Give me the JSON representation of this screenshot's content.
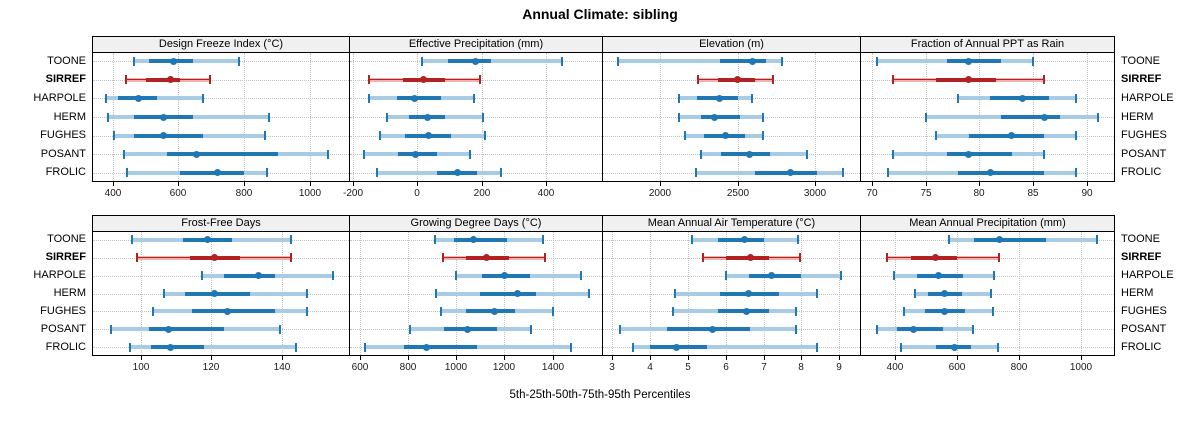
{
  "title": "Annual Climate: sibling",
  "caption": "5th-25th-50th-75th-95th Percentiles",
  "categories": [
    "TOONE",
    "SIRREF",
    "HARPOLE",
    "HERM",
    "FUGHES",
    "POSANT",
    "FROLIC"
  ],
  "highlight_category": "SIRREF",
  "colors": {
    "blue_dark": "#1f77b4",
    "blue_light": "#a8cce4",
    "red_dark": "#b22222",
    "red_light": "#f0b2ae",
    "strip_bg": "#f0f0f0",
    "grid": "#c3c3c3"
  },
  "chart_data": {
    "type": "dot-whisker-percentiles",
    "percentile_labels": [
      "5th",
      "25th",
      "50th",
      "75th",
      "95th"
    ],
    "panels": [
      {
        "title": "Design Freeze Index (°C)",
        "row": 1,
        "col": 0,
        "ticks": [
          400,
          600,
          800,
          1000
        ],
        "domain": [
          340,
          1120
        ],
        "series": [
          {
            "name": "TOONE",
            "values": [
              465,
              510,
              585,
              645,
              785
            ]
          },
          {
            "name": "SIRREF",
            "values": [
              440,
              500,
              575,
              605,
              695
            ]
          },
          {
            "name": "HARPOLE",
            "values": [
              380,
              415,
              480,
              535,
              675
            ]
          },
          {
            "name": "HERM",
            "values": [
              385,
              465,
              555,
              645,
              875
            ]
          },
          {
            "name": "FUGHES",
            "values": [
              405,
              465,
              555,
              675,
              865
            ]
          },
          {
            "name": "POSANT",
            "values": [
              435,
              565,
              655,
              905,
              1055
            ]
          },
          {
            "name": "FROLIC",
            "values": [
              445,
              605,
              720,
              800,
              870
            ]
          }
        ]
      },
      {
        "title": "Effective Precipitation (mm)",
        "row": 1,
        "col": 1,
        "ticks": [
          -200,
          0,
          200,
          400
        ],
        "domain": [
          -210,
          575
        ],
        "series": [
          {
            "name": "TOONE",
            "values": [
              15,
              95,
              180,
              230,
              450
            ]
          },
          {
            "name": "SIRREF",
            "values": [
              -150,
              -45,
              20,
              85,
              195
            ]
          },
          {
            "name": "HARPOLE",
            "values": [
              -150,
              -65,
              -10,
              75,
              175
            ]
          },
          {
            "name": "HERM",
            "values": [
              -95,
              -25,
              30,
              85,
              205
            ]
          },
          {
            "name": "FUGHES",
            "values": [
              -115,
              -40,
              35,
              105,
              210
            ]
          },
          {
            "name": "POSANT",
            "values": [
              -165,
              -60,
              -5,
              60,
              165
            ]
          },
          {
            "name": "FROLIC",
            "values": [
              -125,
              60,
              125,
              185,
              260
            ]
          }
        ]
      },
      {
        "title": "Elevation (m)",
        "row": 1,
        "col": 2,
        "ticks": [
          2000,
          2500,
          3000
        ],
        "domain": [
          1630,
          3290
        ],
        "series": [
          {
            "name": "TOONE",
            "values": [
              1730,
              2385,
              2595,
              2685,
              2785
            ]
          },
          {
            "name": "SIRREF",
            "values": [
              2245,
              2375,
              2500,
              2610,
              2730
            ]
          },
          {
            "name": "HARPOLE",
            "values": [
              2120,
              2235,
              2380,
              2505,
              2590
            ]
          },
          {
            "name": "HERM",
            "values": [
              2120,
              2260,
              2350,
              2515,
              2665
            ]
          },
          {
            "name": "FUGHES",
            "values": [
              2160,
              2280,
              2420,
              2545,
              2665
            ]
          },
          {
            "name": "POSANT",
            "values": [
              2260,
              2395,
              2575,
              2710,
              2945
            ]
          },
          {
            "name": "FROLIC",
            "values": [
              2230,
              2610,
              2840,
              3010,
              3180
            ]
          }
        ]
      },
      {
        "title": "Fraction of Annual PPT as Rain",
        "row": 1,
        "col": 3,
        "ticks": [
          70,
          75,
          80,
          85,
          90
        ],
        "domain": [
          69,
          92.5
        ],
        "series": [
          {
            "name": "TOONE",
            "values": [
              70.5,
              77,
              79,
              82,
              85
            ]
          },
          {
            "name": "SIRREF",
            "values": [
              72,
              76,
              79,
              81.5,
              86
            ]
          },
          {
            "name": "HARPOLE",
            "values": [
              78,
              81,
              84,
              86.5,
              89
            ]
          },
          {
            "name": "HERM",
            "values": [
              75,
              82,
              86,
              87.5,
              91
            ]
          },
          {
            "name": "FUGHES",
            "values": [
              76,
              79,
              83,
              86,
              89
            ]
          },
          {
            "name": "POSANT",
            "values": [
              72,
              77,
              79,
              83,
              86
            ]
          },
          {
            "name": "FROLIC",
            "values": [
              71.5,
              78,
              81,
              86,
              89
            ]
          }
        ]
      },
      {
        "title": "Frost-Free Days",
        "row": 2,
        "col": 0,
        "ticks": [
          100,
          120,
          140
        ],
        "domain": [
          86.5,
          159
        ],
        "series": [
          {
            "name": "TOONE",
            "values": [
              97.5,
              112,
              119,
              126,
              142.5
            ]
          },
          {
            "name": "SIRREF",
            "values": [
              99,
              114,
              121,
              128,
              142.5
            ]
          },
          {
            "name": "HARPOLE",
            "values": [
              117.5,
              123.5,
              133.5,
              138,
              154.5
            ]
          },
          {
            "name": "HERM",
            "values": [
              106.5,
              112.5,
              121,
              131,
              147
            ]
          },
          {
            "name": "FUGHES",
            "values": [
              103.5,
              114.5,
              124.5,
              138,
              147
            ]
          },
          {
            "name": "POSANT",
            "values": [
              91.5,
              102.5,
              108,
              123.5,
              139.5
            ]
          },
          {
            "name": "FROLIC",
            "values": [
              97,
              103,
              108.5,
              118,
              144
            ]
          }
        ]
      },
      {
        "title": "Growing Degree Days (°C)",
        "row": 2,
        "col": 1,
        "ticks": [
          600,
          800,
          1000,
          1200,
          1400
        ],
        "domain": [
          557,
          1606
        ],
        "series": [
          {
            "name": "TOONE",
            "values": [
              910,
              990,
              1070,
              1210,
              1360
            ]
          },
          {
            "name": "SIRREF",
            "values": [
              945,
              1040,
              1125,
              1220,
              1370
            ]
          },
          {
            "name": "HARPOLE",
            "values": [
              1000,
              1105,
              1200,
              1305,
              1520
            ]
          },
          {
            "name": "HERM",
            "values": [
              915,
              1100,
              1255,
              1330,
              1550
            ]
          },
          {
            "name": "FUGHES",
            "values": [
              935,
              1040,
              1160,
              1245,
              1400
            ]
          },
          {
            "name": "POSANT",
            "values": [
              805,
              950,
              1045,
              1170,
              1310
            ]
          },
          {
            "name": "FROLIC",
            "values": [
              620,
              780,
              875,
              1085,
              1475
            ]
          }
        ]
      },
      {
        "title": "Mean Annual Air Temperature (°C)",
        "row": 2,
        "col": 2,
        "ticks": [
          3,
          4,
          5,
          6,
          7,
          8,
          9
        ],
        "domain": [
          2.75,
          9.55
        ],
        "series": [
          {
            "name": "TOONE",
            "values": [
              5.1,
              5.8,
              6.5,
              7.0,
              7.9
            ]
          },
          {
            "name": "SIRREF",
            "values": [
              5.4,
              6.0,
              6.65,
              7.15,
              7.95
            ]
          },
          {
            "name": "HARPOLE",
            "values": [
              6.0,
              6.6,
              7.2,
              8.0,
              9.05
            ]
          },
          {
            "name": "HERM",
            "values": [
              4.65,
              5.85,
              6.6,
              7.4,
              8.4
            ]
          },
          {
            "name": "FUGHES",
            "values": [
              4.6,
              5.8,
              6.55,
              7.15,
              7.85
            ]
          },
          {
            "name": "POSANT",
            "values": [
              3.2,
              4.45,
              5.65,
              6.65,
              7.85
            ]
          },
          {
            "name": "FROLIC",
            "values": [
              3.55,
              4.0,
              4.7,
              5.5,
              8.4
            ]
          }
        ]
      },
      {
        "title": "Mean Annual Precipitation (mm)",
        "row": 2,
        "col": 3,
        "ticks": [
          400,
          600,
          800,
          1000
        ],
        "domain": [
          290,
          1105
        ],
        "series": [
          {
            "name": "TOONE",
            "values": [
              575,
              655,
              735,
              885,
              1050
            ]
          },
          {
            "name": "SIRREF",
            "values": [
              375,
              450,
              530,
              600,
              735
            ]
          },
          {
            "name": "HARPOLE",
            "values": [
              395,
              470,
              540,
              620,
              720
            ]
          },
          {
            "name": "HERM",
            "values": [
              465,
              505,
              560,
              615,
              710
            ]
          },
          {
            "name": "FUGHES",
            "values": [
              430,
              495,
              560,
              625,
              715
            ]
          },
          {
            "name": "POSANT",
            "values": [
              340,
              405,
              460,
              555,
              650
            ]
          },
          {
            "name": "FROLIC",
            "values": [
              420,
              530,
              590,
              645,
              730
            ]
          }
        ]
      }
    ]
  }
}
